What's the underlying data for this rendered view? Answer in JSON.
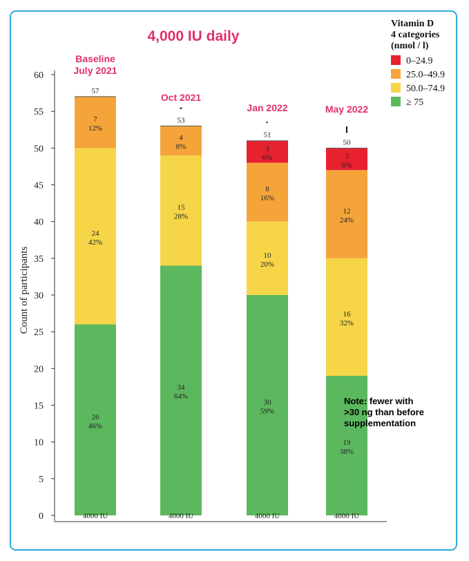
{
  "chart_data": {
    "type": "bar",
    "stacked": true,
    "title": "4,000 IU daily",
    "ylabel": "Count of participants",
    "ylim": [
      0,
      60
    ],
    "yticks": [
      0,
      5,
      10,
      15,
      20,
      25,
      30,
      35,
      40,
      45,
      50,
      55,
      60
    ],
    "categories": [
      {
        "label_lines": [
          "Baseline",
          "July 2021"
        ],
        "bar_label": "4000 IU",
        "total": "57",
        "marker": ""
      },
      {
        "label_lines": [
          "Oct 2021"
        ],
        "bar_label": "4000 IU",
        "total": "53",
        "marker": "-"
      },
      {
        "label_lines": [
          "Jan 2022"
        ],
        "bar_label": "4000 IU",
        "total": "51",
        "marker": "·"
      },
      {
        "label_lines": [
          "May 2022"
        ],
        "bar_label": "4000 IU",
        "total": "50",
        "marker": "I"
      }
    ],
    "legend": {
      "title_lines": [
        "Vitamin D",
        "4 categories",
        "(nmol / l)"
      ],
      "position": "top-right"
    },
    "series": [
      {
        "name": "≥ 75",
        "color": "#5cb85f",
        "values": [
          26,
          34,
          30,
          19
        ],
        "percents": [
          "46%",
          "64%",
          "59%",
          "38%"
        ]
      },
      {
        "name": "50.0–74.9",
        "color": "#f7d548",
        "values": [
          24,
          15,
          10,
          16
        ],
        "percents": [
          "42%",
          "28%",
          "20%",
          "32%"
        ]
      },
      {
        "name": "25.0–49.9",
        "color": "#f5a43a",
        "values": [
          7,
          4,
          8,
          12
        ],
        "percents": [
          "12%",
          "8%",
          "16%",
          "24%"
        ]
      },
      {
        "name": "0–24.9",
        "color": "#e8212f",
        "values": [
          0,
          0,
          3,
          3
        ],
        "percents": [
          "",
          "",
          "6%",
          "6%"
        ]
      }
    ],
    "annotation": {
      "lines": [
        "Note: fewer with",
        ">30 ng than before",
        "supplementation"
      ]
    },
    "title_color": "#e0306a",
    "category_label_color": "#e0306a"
  }
}
